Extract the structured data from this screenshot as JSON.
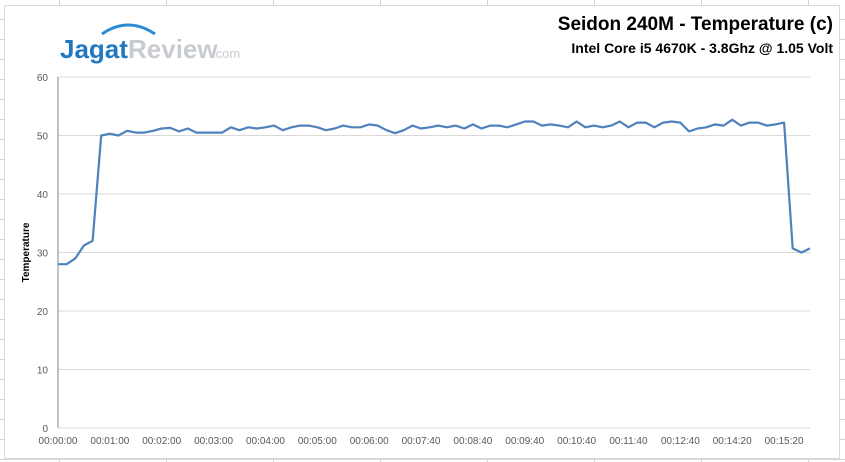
{
  "logo": {
    "part1": "Jagat",
    "part2": "Review",
    "part3": ".com",
    "color1": "#1f78c0",
    "color2": "#c8ccd0"
  },
  "chart_data": {
    "type": "line",
    "title": "Seidon 240M - Temperature (c)",
    "subtitle": "Intel Core i5 4670K - 3.8Ghz @ 1.05 Volt",
    "xlabel": "",
    "ylabel": "Temperature",
    "ylim": [
      0,
      60
    ],
    "yticks": [
      0,
      10,
      20,
      30,
      40,
      50,
      60
    ],
    "grid": true,
    "legend": "none",
    "xtick_labels": [
      "00:00:00",
      "00:01:00",
      "00:02:00",
      "00:03:00",
      "00:04:00",
      "00:05:00",
      "00:06:00",
      "00:07:40",
      "00:08:40",
      "00:09:40",
      "00:10:40",
      "00:11:40",
      "00:12:40",
      "00:14:20",
      "00:15:20"
    ],
    "xtick_every": 6,
    "series": [
      {
        "name": "Temperature",
        "color": "#4f81bd",
        "values": [
          28,
          28,
          29,
          31.2,
          32,
          50,
          50.3,
          50,
          50.8,
          50.5,
          50.5,
          50.8,
          51.2,
          51.3,
          50.7,
          51.2,
          50.5,
          50.5,
          50.5,
          50.5,
          51.4,
          50.9,
          51.4,
          51.2,
          51.4,
          51.7,
          50.9,
          51.4,
          51.7,
          51.7,
          51.4,
          50.9,
          51.2,
          51.7,
          51.4,
          51.4,
          51.9,
          51.7,
          50.9,
          50.4,
          50.9,
          51.7,
          51.2,
          51.4,
          51.7,
          51.4,
          51.7,
          51.2,
          51.9,
          51.2,
          51.7,
          51.7,
          51.4,
          51.9,
          52.4,
          52.4,
          51.7,
          51.9,
          51.7,
          51.4,
          52.4,
          51.4,
          51.7,
          51.4,
          51.7,
          52.4,
          51.4,
          52.2,
          52.2,
          51.4,
          52.2,
          52.4,
          52.2,
          50.7,
          51.2,
          51.4,
          51.9,
          51.7,
          52.7,
          51.7,
          52.2,
          52.2,
          51.7,
          51.9,
          52.2,
          30.7,
          30,
          30.7
        ]
      }
    ]
  }
}
